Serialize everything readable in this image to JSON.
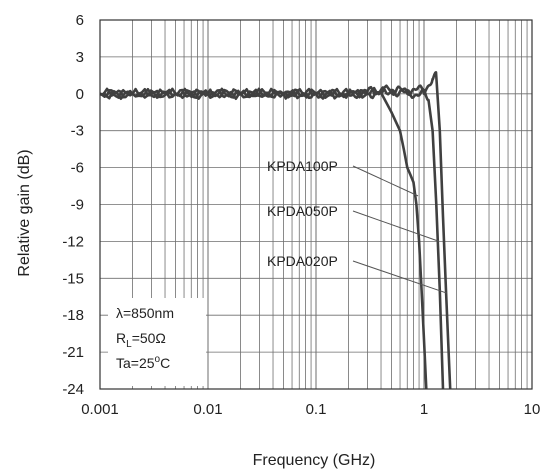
{
  "chart_data": {
    "type": "line",
    "title": "",
    "xlabel": "Frequency (GHz)",
    "ylabel": "Relative gain (dB)",
    "x_scale": "log",
    "xlim": [
      0.001,
      10
    ],
    "ylim": [
      -24,
      6
    ],
    "grid": true,
    "x_ticks": [
      0.001,
      0.01,
      0.1,
      1,
      10
    ],
    "x_tick_labels": [
      "0.001",
      "0.01",
      "0.1",
      "1",
      "10"
    ],
    "y_ticks": [
      6,
      3,
      0,
      -3,
      -6,
      -9,
      -12,
      -15,
      -18,
      -21,
      -24
    ],
    "y_tick_labels": [
      "6",
      "3",
      "0",
      "-3",
      "-6",
      "-9",
      "-12",
      "-15",
      "-18",
      "-21",
      "-24"
    ],
    "series": [
      {
        "name": "KPDA100P",
        "x": [
          0.001,
          0.002,
          0.005,
          0.01,
          0.02,
          0.05,
          0.1,
          0.2,
          0.4,
          0.5,
          0.55,
          0.6,
          0.65,
          0.7,
          0.75,
          0.8,
          0.85,
          0.9,
          0.95,
          1.0,
          1.05
        ],
        "y": [
          0,
          0,
          0,
          0,
          0,
          0,
          0,
          0,
          0.1,
          -1.5,
          -2.3,
          -3.0,
          -4.5,
          -6.0,
          -6.6,
          -7.2,
          -9.0,
          -12.0,
          -16.0,
          -20.0,
          -24.0
        ]
      },
      {
        "name": "KPDA050P",
        "x": [
          0.001,
          0.002,
          0.005,
          0.01,
          0.02,
          0.05,
          0.1,
          0.2,
          0.3,
          0.5,
          0.7,
          1.0,
          1.1,
          1.2,
          1.3,
          1.4,
          1.5
        ],
        "y": [
          0,
          0,
          0,
          0,
          0,
          0,
          0,
          0,
          0.2,
          0.3,
          0,
          0,
          -0.5,
          -3.0,
          -9.0,
          -16.0,
          -24.0
        ]
      },
      {
        "name": "KPDA020P",
        "x": [
          0.001,
          0.002,
          0.005,
          0.01,
          0.02,
          0.05,
          0.1,
          0.2,
          0.3,
          0.5,
          0.7,
          1.0,
          1.2,
          1.3,
          1.4,
          1.5,
          1.6,
          1.75
        ],
        "y": [
          0,
          0,
          0,
          0,
          0,
          0,
          0,
          0,
          0,
          0.2,
          0.3,
          0.3,
          1.2,
          1.4,
          -3.0,
          -10.0,
          -16.0,
          -24.0
        ]
      }
    ],
    "annotations": {
      "lambda": "λ=850nm",
      "rl_prefix": "R",
      "rl_sub": "L",
      "rl_value": "=50Ω",
      "ta_prefix": "Ta=25",
      "ta_sup": "o",
      "ta_unit": "C"
    },
    "colors": {
      "curve": "#404040",
      "grid": "#6e6e6e"
    }
  }
}
